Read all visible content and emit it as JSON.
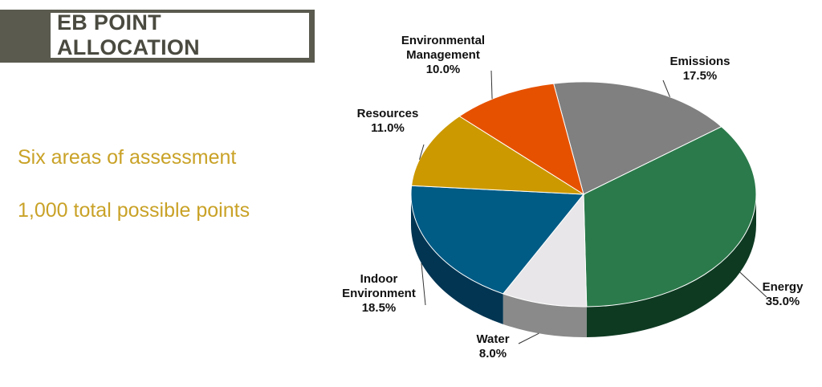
{
  "header": {
    "title": "EB POINT ALLOCATION"
  },
  "bullets": [
    "Six areas of assessment",
    "1,000 total possible points"
  ],
  "chart_data": {
    "type": "pie",
    "style": "3d",
    "slices": [
      {
        "name": "Emissions",
        "value": 17.5,
        "label_lines": [
          "Emissions"
        ],
        "value_text": "17.5%",
        "color": "#808080",
        "side_color": "#5a5a5a"
      },
      {
        "name": "Energy",
        "value": 35.0,
        "label_lines": [
          "Energy"
        ],
        "value_text": "35.0%",
        "color": "#2b7a4b",
        "side_color": "#0e3a22"
      },
      {
        "name": "Water",
        "value": 8.0,
        "label_lines": [
          "Water"
        ],
        "value_text": "8.0%",
        "color": "#e8e6e8",
        "side_color": "#8a8a8a"
      },
      {
        "name": "Indoor Environment",
        "value": 18.5,
        "label_lines": [
          "Indoor",
          "Environment"
        ],
        "value_text": "18.5%",
        "color": "#005b85",
        "side_color": "#013552"
      },
      {
        "name": "Resources",
        "value": 11.0,
        "label_lines": [
          "Resources"
        ],
        "value_text": "11.0%",
        "color": "#cc9900",
        "side_color": "#8a6700"
      },
      {
        "name": "Environmental Management",
        "value": 10.0,
        "label_lines": [
          "Environmental",
          "Management"
        ],
        "value_text": "10.0%",
        "color": "#e65100",
        "side_color": "#a33800"
      }
    ]
  }
}
